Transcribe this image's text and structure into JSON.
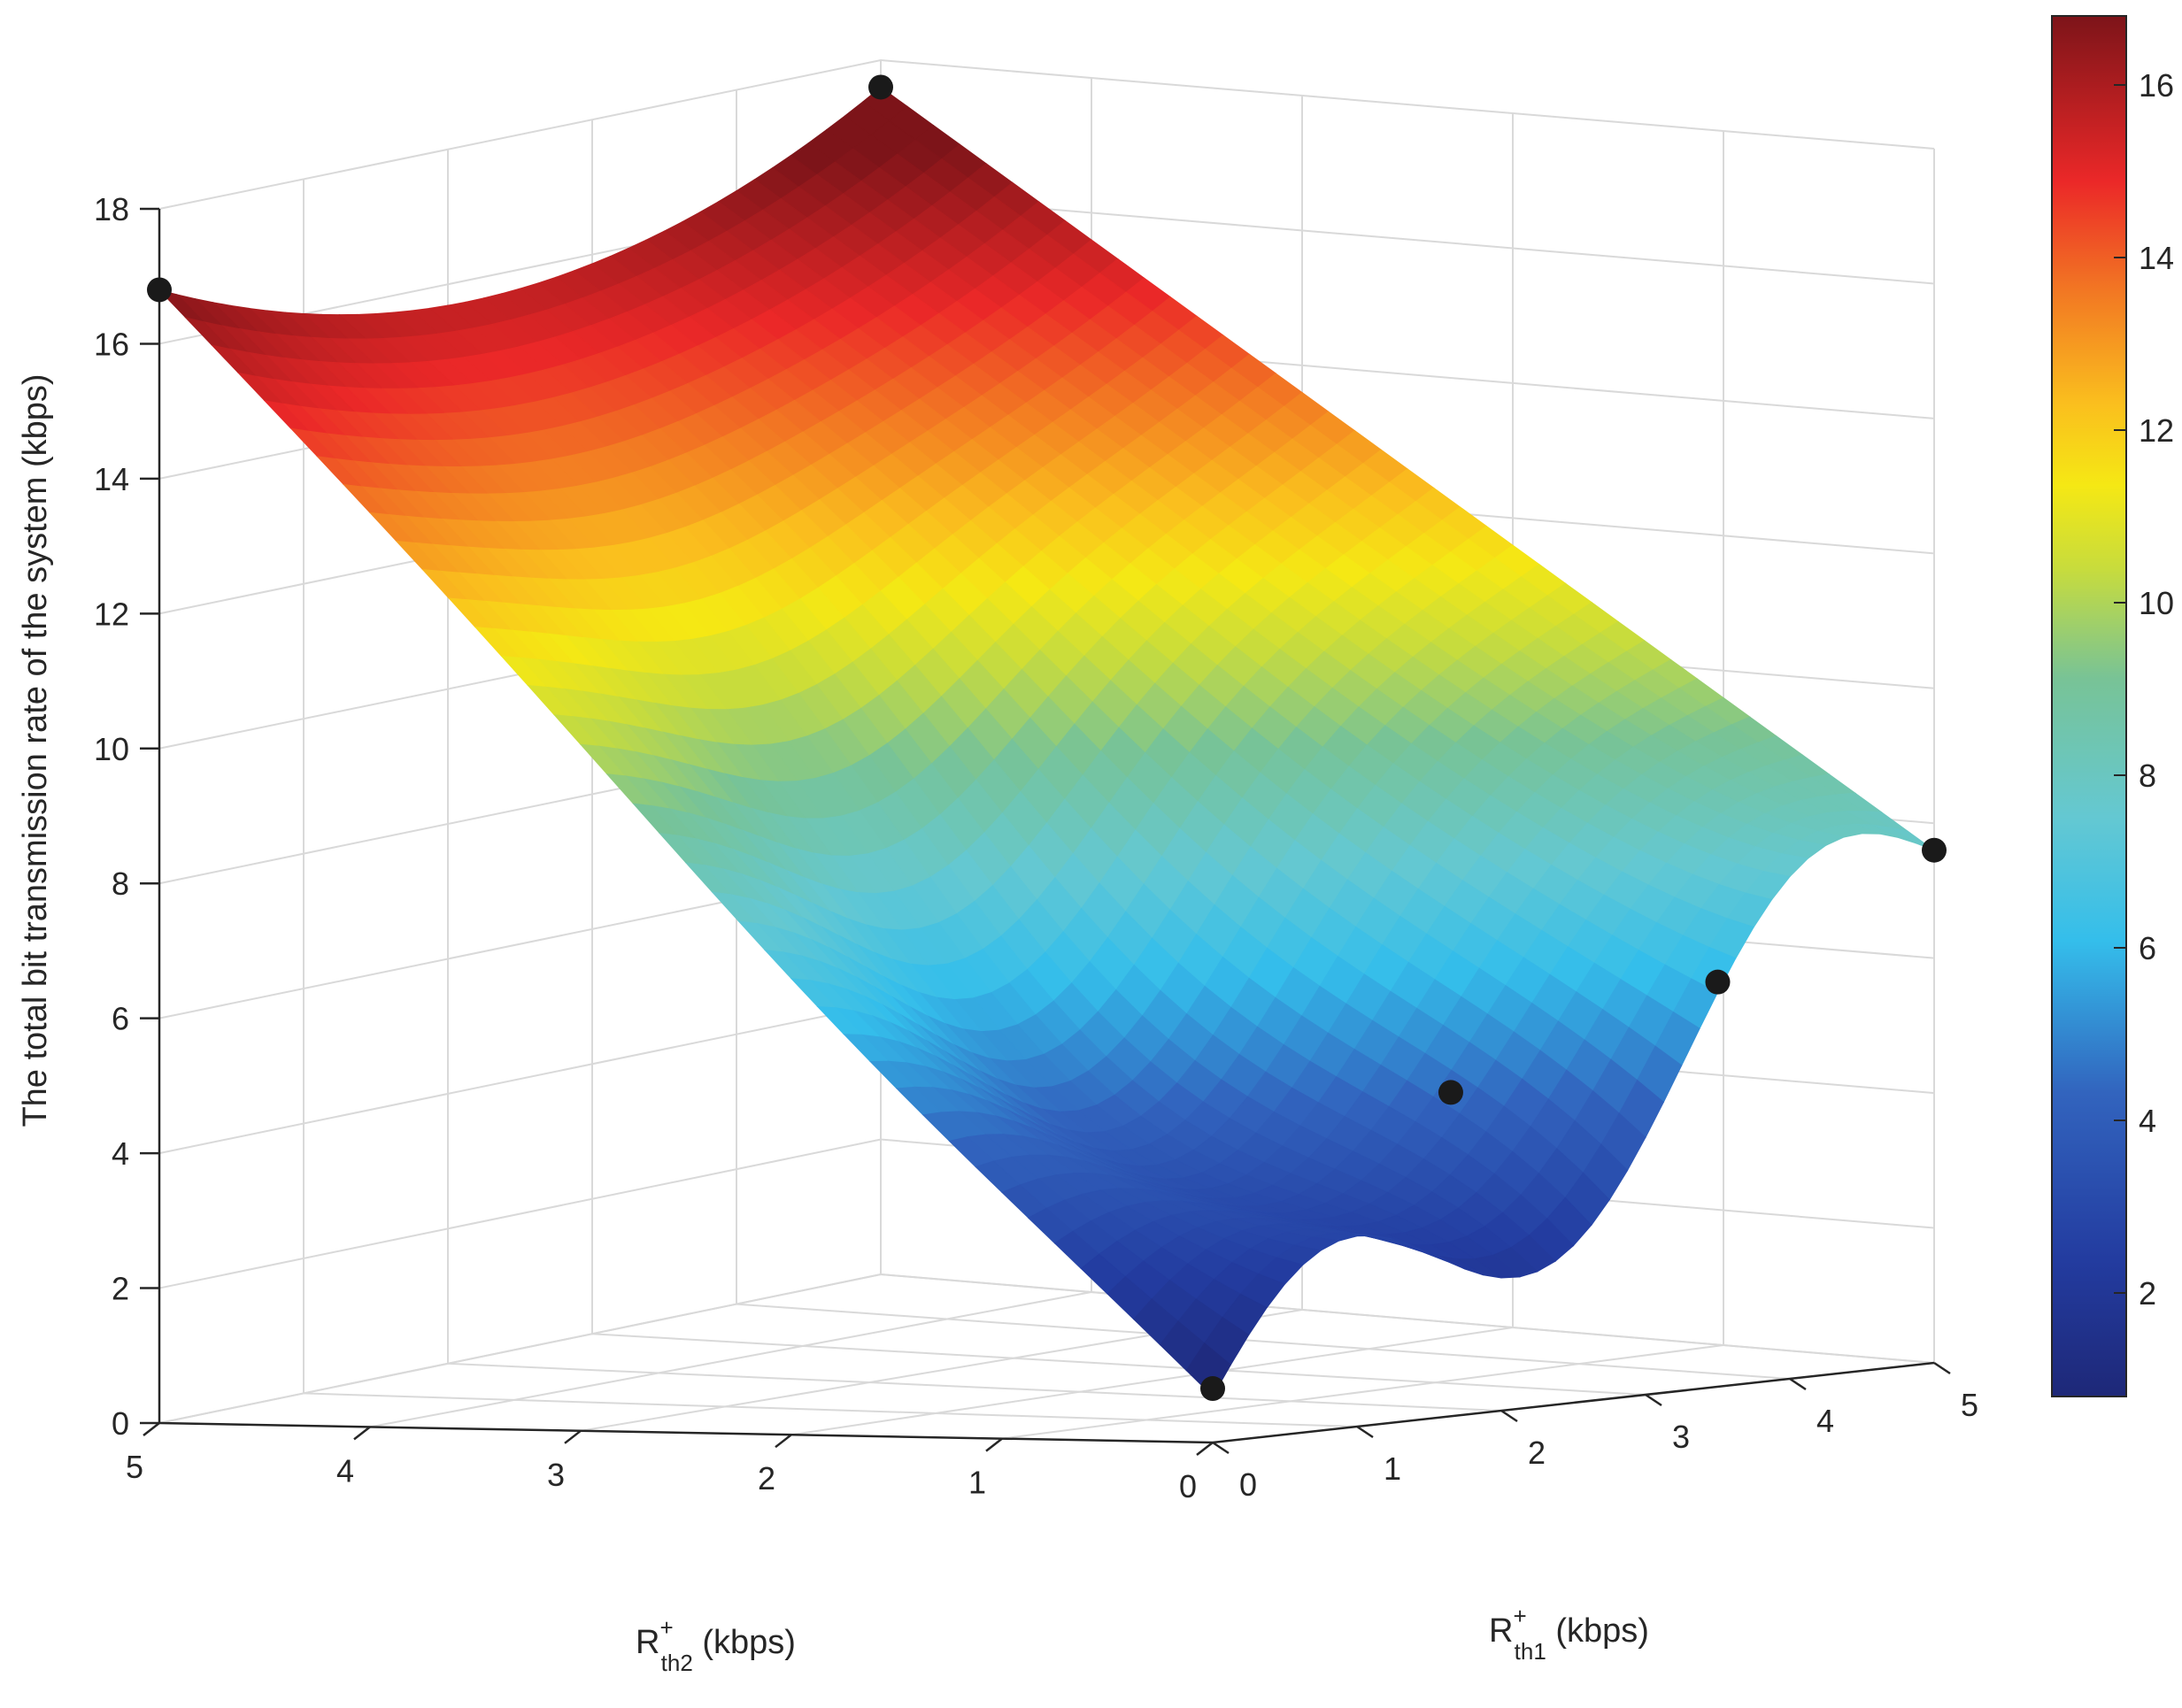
{
  "chart_data": {
    "type": "surface3d",
    "title": "",
    "zlabel": "The total bit transmission rate of the system (kbps)",
    "xlabel": {
      "base": "R",
      "sup": "+",
      "sub": "th1",
      "unit": " (kbps)"
    },
    "ylabel": {
      "base": "R",
      "sup": "+",
      "sub": "th2",
      "unit": " (kbps)"
    },
    "xlim": [
      0,
      5
    ],
    "ylim": [
      0,
      5
    ],
    "zlim": [
      0,
      18
    ],
    "x_ticks": [
      "0",
      "1",
      "2",
      "3",
      "4",
      "5"
    ],
    "y_ticks": [
      "0",
      "1",
      "2",
      "3",
      "4",
      "5"
    ],
    "z_ticks": [
      "0",
      "2",
      "4",
      "6",
      "8",
      "10",
      "12",
      "14",
      "16",
      "18"
    ],
    "grid": true,
    "colormap": "parula-jet",
    "colorbar": {
      "ticks": [
        "2",
        "4",
        "6",
        "8",
        "10",
        "12",
        "14",
        "16"
      ],
      "range": [
        0.8,
        16.8
      ],
      "position": "right"
    },
    "surface_samples": [
      {
        "x": 0,
        "y": 5,
        "z": 16.8
      },
      {
        "x": 5,
        "y": 5,
        "z": 17.6
      },
      {
        "x": 0,
        "y": 0,
        "z": 0.8
      },
      {
        "x": 5,
        "y": 0,
        "z": 7.6
      },
      {
        "x": 2.5,
        "y": 0,
        "z": 5.0
      },
      {
        "x": 5,
        "y": 2.5,
        "z": 7.0
      },
      {
        "x": 2.5,
        "y": 2.5,
        "z": 1.0
      }
    ],
    "markers": [
      {
        "x": 0,
        "y": 5,
        "z": 16.8
      },
      {
        "x": 5,
        "y": 5,
        "z": 17.6
      },
      {
        "x": 0,
        "y": 0,
        "z": 0.8
      },
      {
        "x": 1.65,
        "y": 0,
        "z": 4.8
      },
      {
        "x": 3.5,
        "y": 0,
        "z": 6.0
      },
      {
        "x": 5,
        "y": 0,
        "z": 7.6
      }
    ]
  }
}
